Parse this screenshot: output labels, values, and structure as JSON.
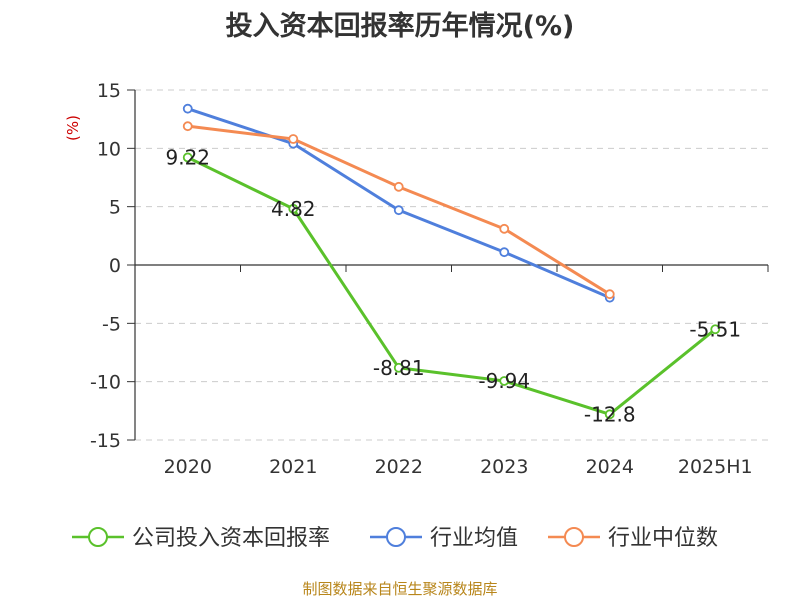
{
  "title": "投入资本回报率历年情况(%)",
  "source": "制图数据来自恒生聚源数据库",
  "chart_data": {
    "type": "line",
    "title": "投入资本回报率历年情况(%)",
    "ylabel": "(%)",
    "categories": [
      "2020",
      "2021",
      "2022",
      "2023",
      "2024",
      "2025H1"
    ],
    "ylim": [
      -15,
      15
    ],
    "yticks": [
      15,
      10,
      5,
      0,
      -5,
      -10,
      -15
    ],
    "grid": true,
    "legend_position": "bottom",
    "series": [
      {
        "name": "公司投入资本回报率",
        "color": "#5ac12b",
        "values": [
          9.22,
          4.82,
          -8.81,
          -9.94,
          -12.8,
          -5.51
        ],
        "labels": [
          "9.22",
          "4.82",
          "-8.81",
          "-9.94",
          "-12.8",
          "-5.51"
        ]
      },
      {
        "name": "行业均值",
        "color": "#4f7fdc",
        "values": [
          13.4,
          10.4,
          4.7,
          1.1,
          -2.8,
          null
        ]
      },
      {
        "name": "行业中位数",
        "color": "#f48a52",
        "values": [
          11.9,
          10.8,
          6.7,
          3.1,
          -2.5,
          null
        ]
      }
    ]
  }
}
